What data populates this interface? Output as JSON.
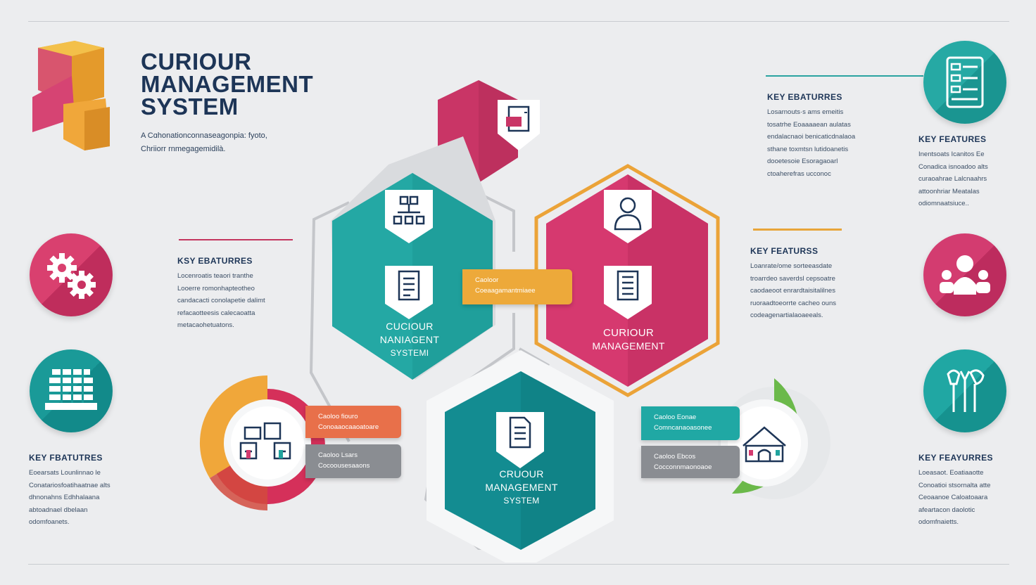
{
  "header": {
    "title_lines": [
      "CURIOUR",
      "MANAGEMENT",
      "SYSTEM"
    ],
    "subtitle_lines": [
      "A Cɑhonationconnaseagonpia: fyoto,",
      "Chriiorr rnmegagemidilà."
    ]
  },
  "features": {
    "top_right": {
      "heading": "KEY EBATURRES",
      "lines": [
        "Losarnouts·s ams emeitis",
        "tosatrhe Eoaaaaean aulatas",
        "endalacnaoi benicaticdnalaoa",
        "sthane toxmtsn lutidoanetis",
        "dooetesoie Esoragaoarl",
        "ctoaherefras ucconoc"
      ]
    },
    "far_right_top": {
      "heading": "KEY FEATURES",
      "lines": [
        "Inentsoats Icanitos Ee",
        "Conadica isnoadoo alts",
        "curaoahrae Lalcnaahrs",
        "attoonhriar Meatalas",
        "odiomnaatsiuce.."
      ]
    },
    "left_mid": {
      "heading": "KSY EBATURRES",
      "lines": [
        "Locenroatis teaori tranthe",
        "Looerre romonhapteotheo",
        "candacacti conolapetie dalimt",
        "refacaotteesis calecaoatta",
        "metacaohetuatons."
      ]
    },
    "center_right": {
      "heading": "KEY FEATURSS",
      "lines": [
        "Loanrate/ome sorteeasdate",
        "troarrdeo saverdsl cepsoatre",
        "caodaeoot enrardtaisitalilnes",
        "ruoraadtoeorrte cacheo ouns",
        "codeagenartialaoaeeals."
      ]
    },
    "bottom_left": {
      "heading": "KEY FBATUTRES",
      "lines": [
        "Eoearsats Lounlinnao le",
        "Conatariosfoatihaatnae alts",
        "dhnonahns Edhhalaana",
        "abtoadnael dbelaan",
        "odomfoanets."
      ]
    },
    "bottom_right": {
      "heading": "KEY FEAYURRES",
      "lines": [
        "Loeasaot. Eoatiaaotte",
        "Conoatioi stsornalta atte",
        "Ceoaanoe Caloatoaara",
        "afeartacon daolotic",
        "odomfnaietts."
      ]
    }
  },
  "tags": {
    "center": [
      "Caoloor",
      "Coeaagamantmiaee"
    ],
    "left_orange": [
      "Caoloo fiouro",
      "Conoaaocaaoatoare"
    ],
    "left_gray": [
      "Caoloo Lsars",
      "Cocoousesaaons"
    ],
    "right_teal": [
      "Caoloo Eonae",
      "Comncanaoasonee"
    ],
    "right_gray": [
      "Caoloo Ebcos",
      "Cocconnmaonoaoe"
    ]
  },
  "hexagons": {
    "teal_left": [
      "CUCIOUR",
      "NANIAGENT",
      "SYSTEMI"
    ],
    "pink_right": [
      "CURIOUR",
      "MANAGEMENT"
    ],
    "teal_bottom": [
      "CRUOUR",
      "MANAGEMENT",
      "SYSTEM"
    ]
  },
  "colors": {
    "navy": "#1d3557",
    "teal": "#20a39e",
    "dark_teal": "#14878c",
    "pink": "#d43a6f",
    "orange": "#f0a73a",
    "coral": "#e8704a",
    "green": "#6bb94a",
    "gray": "#8a8d92"
  },
  "icons": {
    "logo": "folded-box-logo",
    "circles": [
      "gear-icon",
      "building-stack-icon",
      "form-checklist-icon",
      "people-group-icon",
      "tools-icon"
    ],
    "shields": [
      "document-print-icon",
      "org-chart-icon",
      "checklist-icon",
      "user-icon",
      "document-list-icon",
      "warehouse-icon",
      "house-icon",
      "document-icon"
    ]
  }
}
